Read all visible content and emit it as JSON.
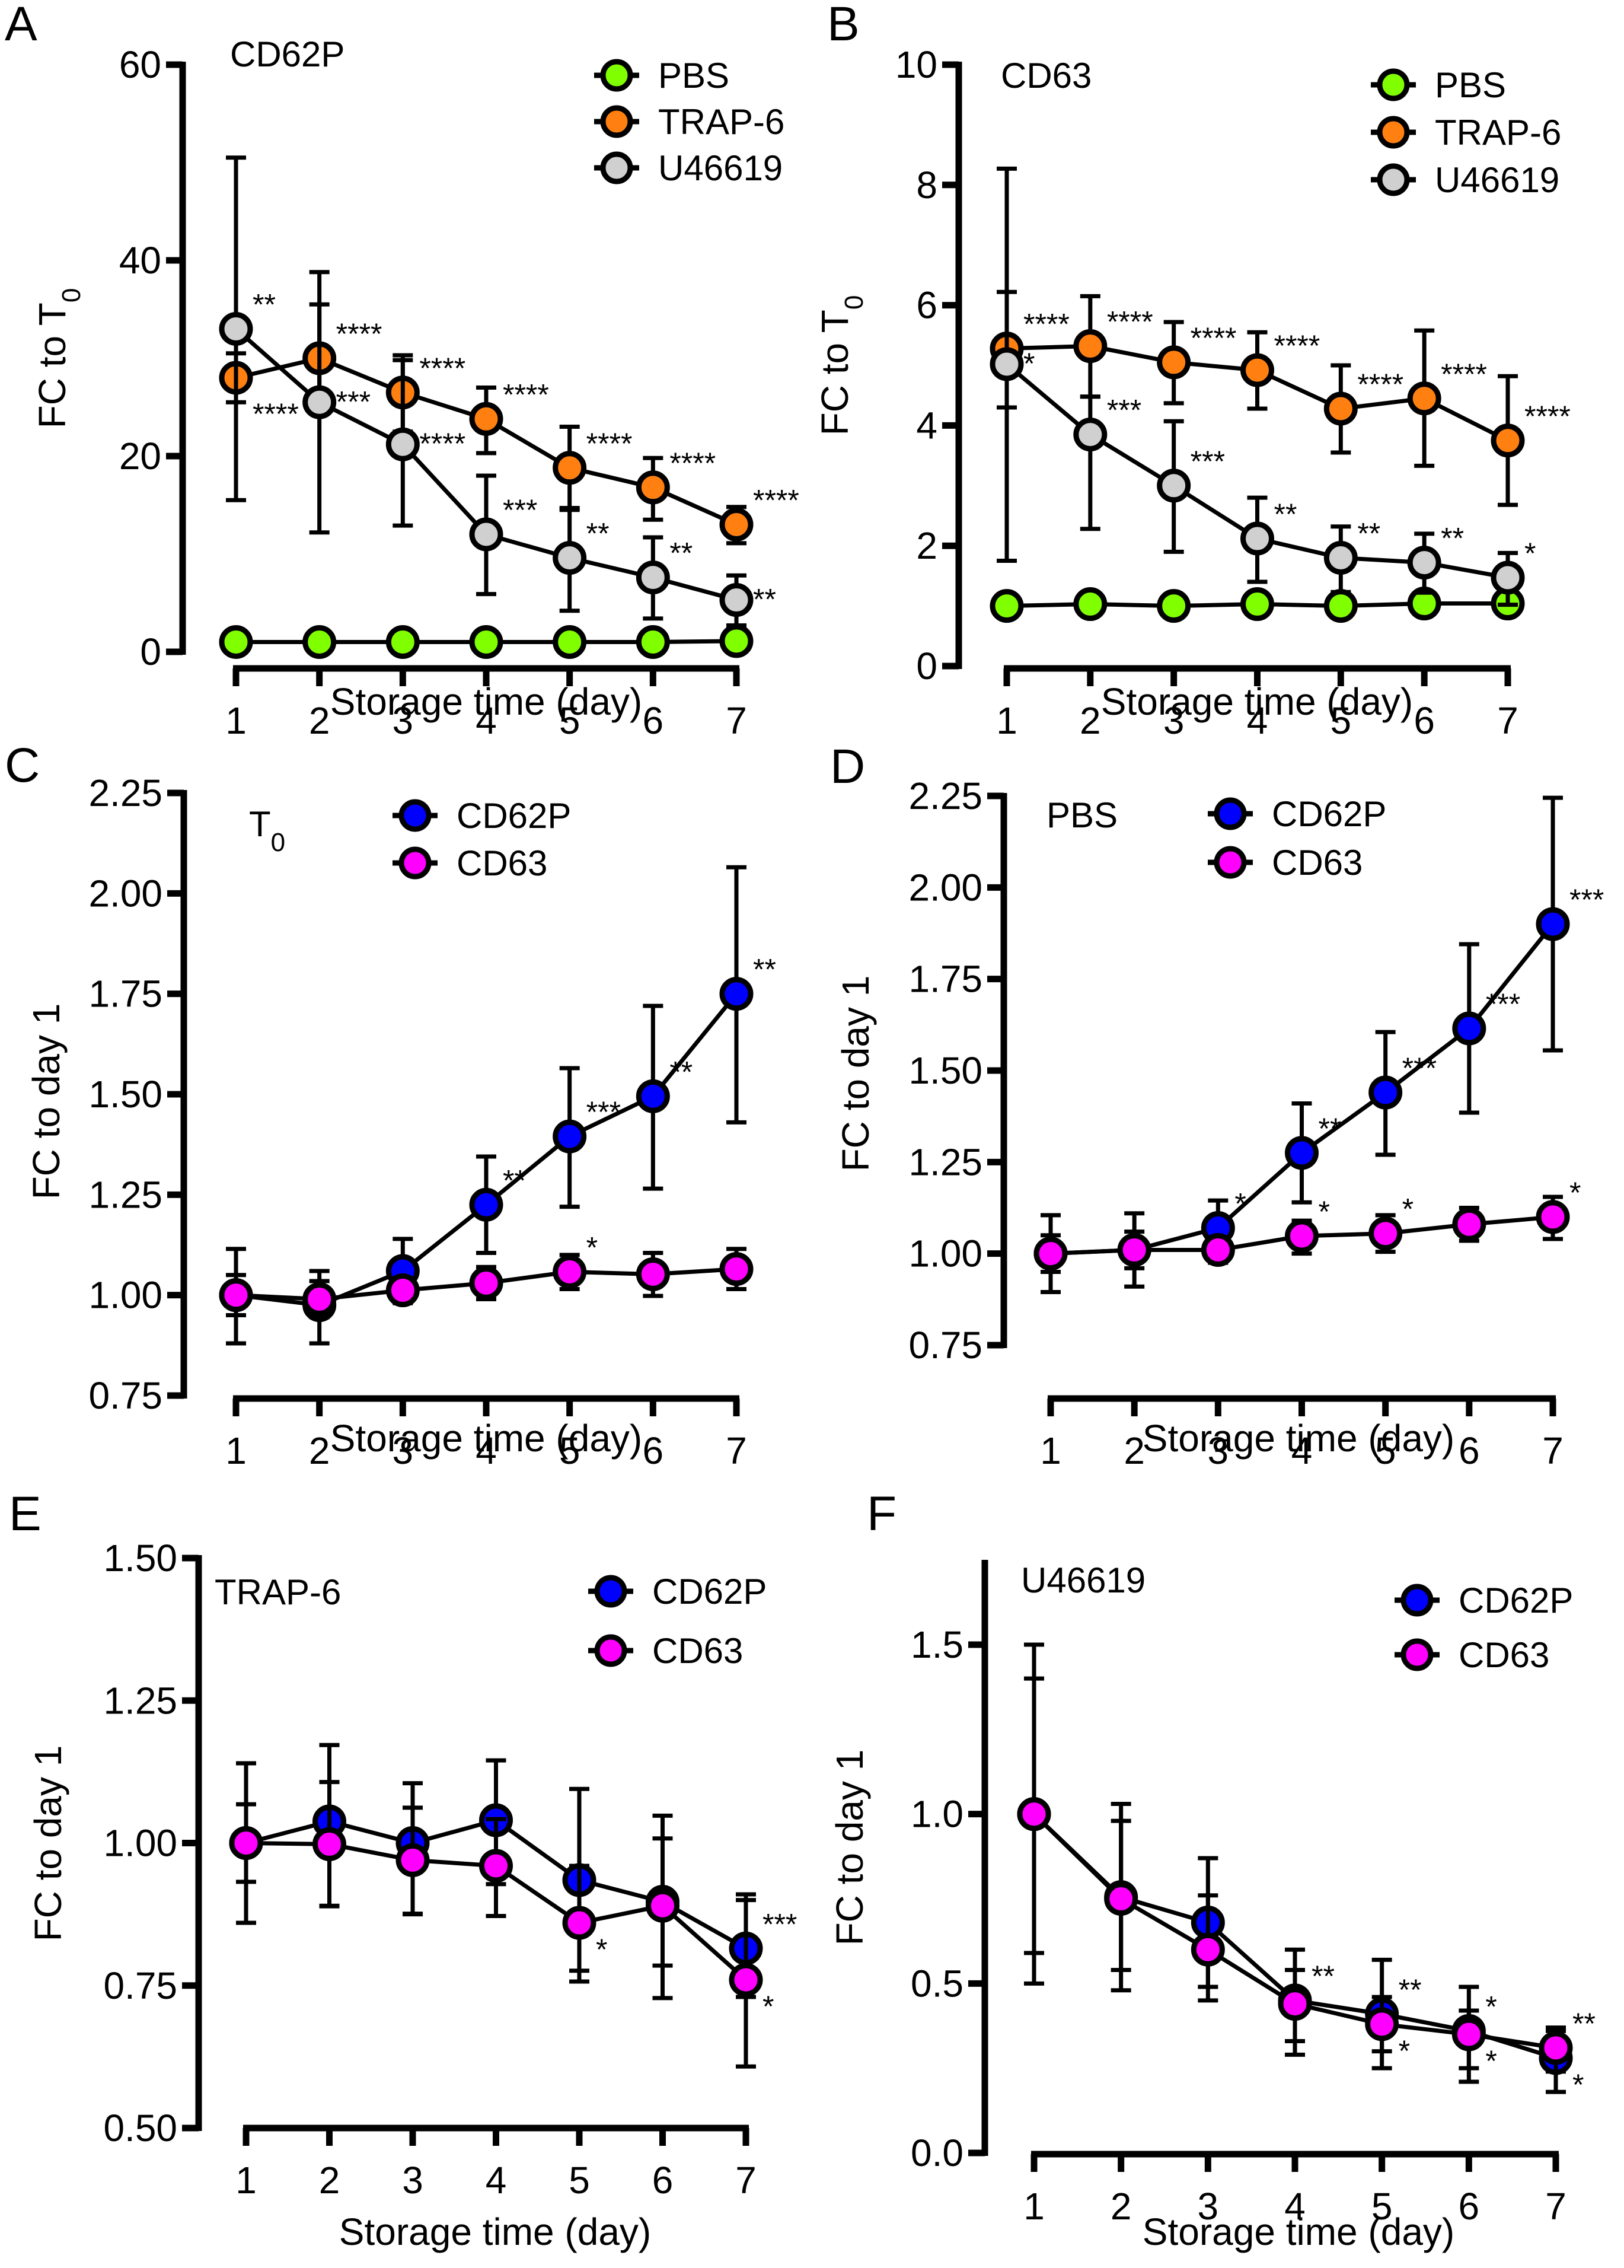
{
  "colors": {
    "PBS": "#80ff00",
    "TRAP-6": "#ff8010",
    "U46619": "#d0d0d0",
    "CD62P": "#0000ff",
    "CD63": "#ff00ff"
  },
  "chart_data": [
    {
      "panel": "A",
      "type": "line",
      "title": "CD62P",
      "xlabel": "Storage time (day)",
      "ylabel": "FC to T0",
      "ylabel_main": "FC to T",
      "ylabel_sub": "0",
      "x": [
        1,
        2,
        3,
        4,
        5,
        6,
        7
      ],
      "xticks": [
        "1",
        "2",
        "3",
        "4",
        "5",
        "6",
        "7"
      ],
      "ylim": [
        0,
        60
      ],
      "yticks": [
        0,
        20,
        40,
        60
      ],
      "ytick_labels": [
        "0",
        "20",
        "40",
        "60"
      ],
      "legend": "top-right",
      "series": [
        {
          "name": "PBS",
          "values": [
            1,
            1,
            1,
            1,
            1,
            1,
            1.1
          ],
          "err_hi": [
            0,
            0,
            0,
            0,
            0,
            0,
            0
          ],
          "err_lo": [
            0,
            0,
            0,
            0,
            0,
            0,
            0
          ],
          "sig": [
            "",
            "",
            "",
            "",
            "",
            "",
            ""
          ],
          "sig_pos": [
            "",
            "",
            "",
            "",
            "",
            "",
            ""
          ]
        },
        {
          "name": "TRAP-6",
          "values": [
            28,
            30,
            26.5,
            23.8,
            18.8,
            16.8,
            13
          ],
          "err_hi": [
            30.5,
            38.8,
            29.8,
            27,
            23,
            19.8,
            14.8
          ],
          "err_lo": [
            25.5,
            24.5,
            22.5,
            20.3,
            14.5,
            13.5,
            11.1
          ],
          "sig": [
            "****",
            "****",
            "****",
            "****",
            "****",
            "****",
            "****"
          ],
          "sig_pos": [
            "below",
            "upper",
            "upper",
            "upper",
            "upper",
            "upper",
            "upper"
          ]
        },
        {
          "name": "U46619",
          "values": [
            33,
            25.5,
            21.2,
            12,
            9.6,
            7.6,
            5.3
          ],
          "err_hi": [
            50.5,
            35.5,
            30.3,
            18,
            14.7,
            11.7,
            7.8
          ],
          "err_lo": [
            15.5,
            12.2,
            12.9,
            5.9,
            4.2,
            3.4,
            2.7
          ],
          "sig": [
            "**",
            "***",
            "****",
            "***",
            "**",
            "**",
            "**"
          ],
          "sig_pos": [
            "upper",
            "mid",
            "mid",
            "upper",
            "upper",
            "upper",
            "mid"
          ]
        }
      ]
    },
    {
      "panel": "B",
      "type": "line",
      "title": "CD63",
      "xlabel": "Storage time (day)",
      "ylabel": "FC to T0",
      "ylabel_main": "FC to T",
      "ylabel_sub": "0",
      "x": [
        1,
        2,
        3,
        4,
        5,
        6,
        7
      ],
      "xticks": [
        "1",
        "2",
        "3",
        "4",
        "5",
        "6",
        "7"
      ],
      "ylim": [
        0,
        10
      ],
      "yticks": [
        0,
        2,
        4,
        6,
        8,
        10
      ],
      "ytick_labels": [
        "0",
        "2",
        "4",
        "6",
        "8",
        "10"
      ],
      "legend": "top-right",
      "series": [
        {
          "name": "PBS",
          "values": [
            1.0,
            1.03,
            1.0,
            1.03,
            1.0,
            1.04,
            1.04
          ],
          "err_hi": [
            0,
            0,
            0,
            0,
            0,
            0,
            0
          ],
          "err_lo": [
            0,
            0,
            0,
            0,
            0,
            0,
            0
          ],
          "sig": [
            "",
            "",
            "",
            "",
            "",
            "",
            ""
          ],
          "sig_pos": [
            "",
            "",
            "",
            "",
            "",
            "",
            ""
          ]
        },
        {
          "name": "TRAP-6",
          "values": [
            5.28,
            5.32,
            5.05,
            4.92,
            4.28,
            4.45,
            3.75
          ],
          "err_hi": [
            6.22,
            6.15,
            5.72,
            5.55,
            5.0,
            5.58,
            4.82
          ],
          "err_lo": [
            4.3,
            4.48,
            4.37,
            4.28,
            3.55,
            3.33,
            2.68
          ],
          "sig": [
            "****",
            "****",
            "****",
            "****",
            "****",
            "****",
            "****"
          ],
          "sig_pos": [
            "upper",
            "upper",
            "upper",
            "upper",
            "upper",
            "upper",
            "upper"
          ]
        },
        {
          "name": "U46619",
          "values": [
            5.02,
            3.85,
            3.0,
            2.12,
            1.8,
            1.72,
            1.47
          ],
          "err_hi": [
            8.27,
            4.48,
            4.07,
            2.8,
            2.32,
            2.2,
            1.88
          ],
          "err_lo": [
            1.75,
            2.28,
            1.9,
            1.4,
            1.23,
            1.22,
            1.02
          ],
          "sig": [
            "*",
            "***",
            "***",
            "**",
            "**",
            "**",
            "*"
          ],
          "sig_pos": [
            "mid",
            "upper",
            "upper",
            "upper",
            "upper",
            "upper",
            "upper"
          ]
        }
      ]
    },
    {
      "panel": "C",
      "type": "line",
      "title": "T0",
      "title_main": "T",
      "title_sub": "0",
      "xlabel": "Storage time (day)",
      "ylabel": "FC to day 1",
      "x": [
        1,
        2,
        3,
        4,
        5,
        6,
        7
      ],
      "xticks": [
        "1",
        "2",
        "3",
        "4",
        "5",
        "6",
        "7"
      ],
      "ylim": [
        0.75,
        2.25
      ],
      "yticks": [
        0.75,
        1.0,
        1.25,
        1.5,
        1.75,
        2.0,
        2.25
      ],
      "ytick_labels": [
        "0.75",
        "1.00",
        "1.25",
        "1.50",
        "1.75",
        "2.00",
        "2.25"
      ],
      "legend": "top-center",
      "series": [
        {
          "name": "CD62P",
          "values": [
            1.0,
            0.975,
            1.06,
            1.225,
            1.395,
            1.495,
            1.75
          ],
          "err_hi": [
            1.115,
            1.06,
            1.14,
            1.345,
            1.565,
            1.72,
            2.065
          ],
          "err_lo": [
            0.88,
            0.88,
            0.98,
            1.105,
            1.22,
            1.265,
            1.43
          ],
          "sig": [
            "",
            "",
            "",
            "**",
            "***",
            "**",
            "**"
          ],
          "sig_pos": [
            "",
            "",
            "",
            "upper",
            "upper",
            "upper",
            "upper"
          ]
        },
        {
          "name": "CD63",
          "values": [
            1.0,
            0.99,
            1.012,
            1.03,
            1.058,
            1.052,
            1.065
          ],
          "err_hi": [
            1.05,
            1.035,
            1.03,
            1.07,
            1.1,
            1.105,
            1.115
          ],
          "err_lo": [
            0.95,
            0.945,
            0.985,
            0.99,
            1.015,
            0.998,
            1.015
          ],
          "sig": [
            "",
            "",
            "",
            "",
            "*",
            "",
            ""
          ],
          "sig_pos": [
            "",
            "",
            "",
            "",
            "upper",
            "",
            ""
          ]
        }
      ]
    },
    {
      "panel": "D",
      "type": "line",
      "title": "PBS",
      "xlabel": "Storage time (day)",
      "ylabel": "FC to day 1",
      "x": [
        1,
        2,
        3,
        4,
        5,
        6,
        7
      ],
      "xticks": [
        "1",
        "2",
        "3",
        "4",
        "5",
        "6",
        "7"
      ],
      "ylim": [
        0.75,
        2.25
      ],
      "yticks": [
        0.75,
        1.0,
        1.25,
        1.5,
        1.75,
        2.0,
        2.25
      ],
      "ytick_labels": [
        "0.75",
        "1.00",
        "1.25",
        "1.50",
        "1.75",
        "2.00",
        "2.25"
      ],
      "legend": "top-center",
      "series": [
        {
          "name": "CD62P",
          "values": [
            1.0,
            1.01,
            1.07,
            1.275,
            1.44,
            1.615,
            1.9
          ],
          "err_hi": [
            1.105,
            1.11,
            1.145,
            1.41,
            1.605,
            1.845,
            2.245
          ],
          "err_lo": [
            0.895,
            0.91,
            0.985,
            1.14,
            1.27,
            1.385,
            1.555
          ],
          "sig": [
            "",
            "",
            "*",
            "**",
            "***",
            "***",
            "***"
          ],
          "sig_pos": [
            "",
            "",
            "upper",
            "upper",
            "upper",
            "upper",
            "upper"
          ]
        },
        {
          "name": "CD63",
          "values": [
            1.0,
            1.01,
            1.01,
            1.048,
            1.055,
            1.08,
            1.1
          ],
          "err_hi": [
            1.05,
            1.06,
            1.03,
            1.09,
            1.105,
            1.125,
            1.155
          ],
          "err_lo": [
            0.95,
            0.96,
            0.975,
            1.0,
            1.005,
            1.035,
            1.04
          ],
          "sig": [
            "",
            "",
            "",
            "*",
            "*",
            "",
            "*"
          ],
          "sig_pos": [
            "",
            "",
            "",
            "upper",
            "upper",
            "",
            "upper"
          ]
        }
      ]
    },
    {
      "panel": "E",
      "type": "line",
      "title": "TRAP-6",
      "xlabel": "Storage time (day)",
      "ylabel": "FC to day 1",
      "x": [
        1,
        2,
        3,
        4,
        5,
        6,
        7
      ],
      "xticks": [
        "1",
        "2",
        "3",
        "4",
        "5",
        "6",
        "7"
      ],
      "ylim": [
        0.5,
        1.5
      ],
      "yticks": [
        0.5,
        0.75,
        1.0,
        1.25,
        1.5
      ],
      "ytick_labels": [
        "0.50",
        "0.75",
        "1.00",
        "1.25",
        "1.50"
      ],
      "legend": "top-right",
      "series": [
        {
          "name": "CD62P",
          "values": [
            1.0,
            1.038,
            1.0,
            1.04,
            0.935,
            0.897,
            0.815
          ],
          "err_hi": [
            1.14,
            1.172,
            1.105,
            1.145,
            1.095,
            1.048,
            0.91
          ],
          "err_lo": [
            0.86,
            0.89,
            0.875,
            0.872,
            0.776,
            0.728,
            0.73
          ],
          "sig": [
            "",
            "",
            "",
            "",
            "",
            "",
            "***"
          ],
          "sig_pos": [
            "",
            "",
            "",
            "",
            "",
            "",
            "upper"
          ]
        },
        {
          "name": "CD63",
          "values": [
            1.0,
            0.998,
            0.97,
            0.96,
            0.86,
            0.89,
            0.76
          ],
          "err_hi": [
            1.068,
            1.107,
            1.062,
            1.042,
            0.96,
            1.008,
            0.9
          ],
          "err_lo": [
            0.932,
            0.889,
            0.876,
            0.928,
            0.757,
            0.785,
            0.608
          ],
          "sig": [
            "",
            "",
            "",
            "",
            "*",
            "",
            "*"
          ],
          "sig_pos": [
            "",
            "",
            "",
            "",
            "lower",
            "",
            "lower"
          ]
        }
      ]
    },
    {
      "panel": "F",
      "type": "line",
      "title": "U46619",
      "xlabel": "Storage time (day)",
      "ylabel": "FC to day 1",
      "x": [
        1,
        2,
        3,
        4,
        5,
        6,
        7
      ],
      "xticks": [
        "1",
        "2",
        "3",
        "4",
        "5",
        "6",
        "7"
      ],
      "ylim": [
        0.0,
        1.7
      ],
      "yticks": [
        0.0,
        0.5,
        1.0,
        1.5
      ],
      "ytick_labels": [
        "0.0",
        "0.5",
        "1.0",
        "1.5"
      ],
      "legend": "top-right",
      "series": [
        {
          "name": "CD62P",
          "values": [
            1.0,
            0.755,
            0.68,
            0.45,
            0.41,
            0.36,
            0.28
          ],
          "err_hi": [
            1.5,
            1.03,
            0.87,
            0.6,
            0.57,
            0.49,
            0.37
          ],
          "err_lo": [
            0.5,
            0.48,
            0.45,
            0.29,
            0.25,
            0.21,
            0.18
          ],
          "sig": [
            "",
            "",
            "",
            "**",
            "**",
            "*",
            "*"
          ],
          "sig_pos": [
            "",
            "",
            "",
            "upper",
            "upper",
            "upper",
            "lower"
          ]
        },
        {
          "name": "CD63",
          "values": [
            1.0,
            0.75,
            0.6,
            0.44,
            0.38,
            0.35,
            0.31
          ],
          "err_hi": [
            1.4,
            0.98,
            0.76,
            0.54,
            0.46,
            0.42,
            0.36
          ],
          "err_lo": [
            0.59,
            0.54,
            0.49,
            0.33,
            0.3,
            0.25,
            0.24
          ],
          "sig": [
            "",
            "",
            "",
            "",
            "*",
            "*",
            "**"
          ],
          "sig_pos": [
            "",
            "",
            "",
            "",
            "lower",
            "lower",
            "upper"
          ]
        }
      ]
    }
  ]
}
